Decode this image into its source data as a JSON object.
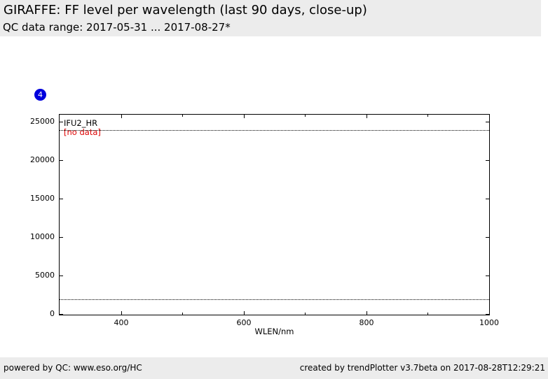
{
  "header": {
    "title": "GIRAFFE: FF level per wavelength (last 90 days, close-up)",
    "subtitle": "QC data range: 2017-05-31 ... 2017-08-27*"
  },
  "badge": {
    "label": "4",
    "color": "#0000dd"
  },
  "chart_data": {
    "type": "line",
    "title": "",
    "xlabel": "WLEN/nm",
    "ylabel": "",
    "xlim": [
      300,
      1000
    ],
    "ylim": [
      0,
      26000
    ],
    "x_major_ticks": [
      400,
      600,
      800,
      1000
    ],
    "x_minor_ticks": [
      500,
      700,
      900
    ],
    "y_major_ticks": [
      0,
      5000,
      10000,
      15000,
      20000,
      25000
    ],
    "grid": false,
    "legend": {
      "label": "IFU2_HR",
      "position": "top-left",
      "color": "#000000"
    },
    "annotation": {
      "text": "[no data]",
      "color": "#dd0000",
      "position": "top-left"
    },
    "series": [
      {
        "name": "upper-threshold",
        "style": "dotted",
        "color": "#000000",
        "y": 24000
      },
      {
        "name": "lower-threshold",
        "style": "dotted",
        "color": "#000000",
        "y": 2000
      }
    ],
    "frame_color": "#000000"
  },
  "footer": {
    "left": "powered by QC: www.eso.org/HC",
    "right": "created by trendPlotter v3.7beta on 2017-08-28T12:29:21"
  }
}
